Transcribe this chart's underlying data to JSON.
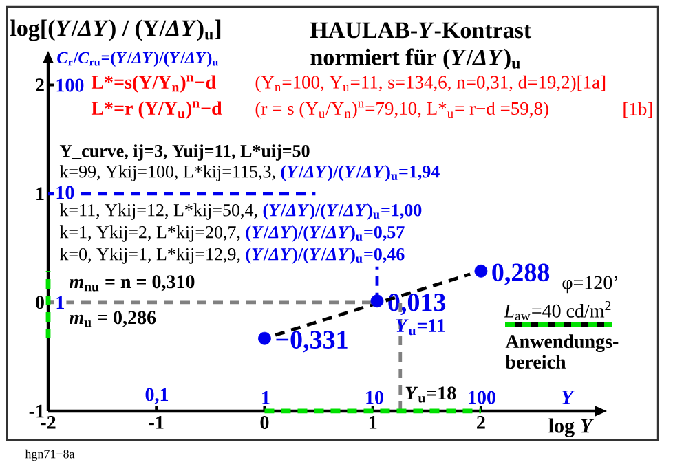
{
  "chart_data": {
    "type": "scatter",
    "title": "HAULAB-*Y*-Kontrast",
    "subtitle": "normiert für (*Y*/*ΔY*)$_{u}$",
    "ylabel": "log[(*Y*/*ΔY*) / (Y/*ΔY*)$_{u}$]",
    "y2label": "*C*$_{r}$/*C*$_{ru}$=(*Y*/*ΔY*)/(*Y*/*ΔY*)$_{u}$",
    "xlabel": "log *Y*",
    "x2label": "Y",
    "xlim": [
      -2,
      3.05
    ],
    "ylim": [
      -1,
      2.2
    ],
    "xticks": [
      -2,
      -1,
      0,
      1,
      2
    ],
    "yticks": [
      -1,
      0,
      1,
      2
    ],
    "legend": "right",
    "series": [
      {
        "color": "#0000ee",
        "x": [
          0,
          1.04,
          2
        ],
        "values": [
          -0.331,
          0.013,
          0.288
        ],
        "value_labels": [
          "−0,331",
          "0,013",
          "0,288"
        ]
      },
      {
        "type": "line",
        "color": "#000000",
        "line_style": "dashed",
        "x": [
          0.1,
          1.9
        ],
        "values": [
          -0.3,
          0.26
        ]
      },
      {
        "type": "line",
        "color": "#808080",
        "line_style": "dashed",
        "x": [
          -2,
          1.04
        ],
        "values": [
          0,
          0
        ]
      },
      {
        "type": "line",
        "color": "#808080",
        "line_style": "dashed",
        "x": [
          1.255,
          1.255
        ],
        "values": [
          -1,
          0
        ]
      },
      {
        "type": "line",
        "color": "#0000ee",
        "line_style": "dashed",
        "x": [
          1.04,
          1.04
        ],
        "values": [
          0,
          0.33
        ]
      },
      {
        "type": "line",
        "color": "#0000ee",
        "line_style": "dashed",
        "x": [
          -2,
          0.47
        ],
        "values": [
          1,
          1
        ]
      },
      {
        "type": "line",
        "name": "Anwendungs-bereich",
        "color": "#00e000",
        "line_style": "dashed",
        "x": [
          0,
          2
        ],
        "values": [
          -1,
          -1
        ]
      },
      {
        "type": "line",
        "color": "#00e000",
        "line_style": "dashed",
        "x": [
          -2,
          -2
        ],
        "values": [
          -0.33,
          0.29
        ]
      }
    ],
    "annotations": [
      "L*=s(Y/Y$_{n}$)$^{n}$−d",
      "(Y$_{n}$=100, Y$_{u}$=11, s=134,6, n=0,31, d=19,2)[1a]",
      "L*=r (Y/Y$_{u}$)$^{n}$−d",
      "(r = s (Y$_{u}$/Y$_{n}$)$^{n}$=79,10, L*$_{u}$= r−d =59,8)",
      "[1b]",
      "Y_curve, ij=3, Yuij=11, L*uij=50",
      "k=99, Ykij=100, L*kij=115,3,",
      "(*Y*/*ΔY*)/(*Y*/*ΔY*)$_{u}$=1,94",
      "k=11, Ykij=12, L*kij=50,4,",
      "(*Y*/*ΔY*)/(*Y*/*ΔY*)$_{u}$=1,00",
      "k=1, Ykij=2, L*kij=20,7,",
      "(*Y*/*ΔY*)/(*Y*/*ΔY*)$_{u}$=0,57",
      "k=0, Ykij=1, L*kij=12,9,",
      "(*Y*/*ΔY*)/(*Y*/*ΔY*)$_{u}$=0,46",
      "*m*$_{nu}$ = n = 0,310",
      "*m*$_{u}$ = 0,286",
      "φ=120’",
      "*L*$_{aw}$=40 cd/m$^{2}$",
      {
        "text": "*Y*$_{u}$=18",
        "x": 1.255,
        "y": -1
      },
      {
        "text": "*Y*$_{u}$=11",
        "x": 1.04,
        "y": 0
      },
      "hgn71−8a",
      "0,1",
      "1",
      "10",
      "100",
      "100",
      "10",
      "1"
    ]
  }
}
